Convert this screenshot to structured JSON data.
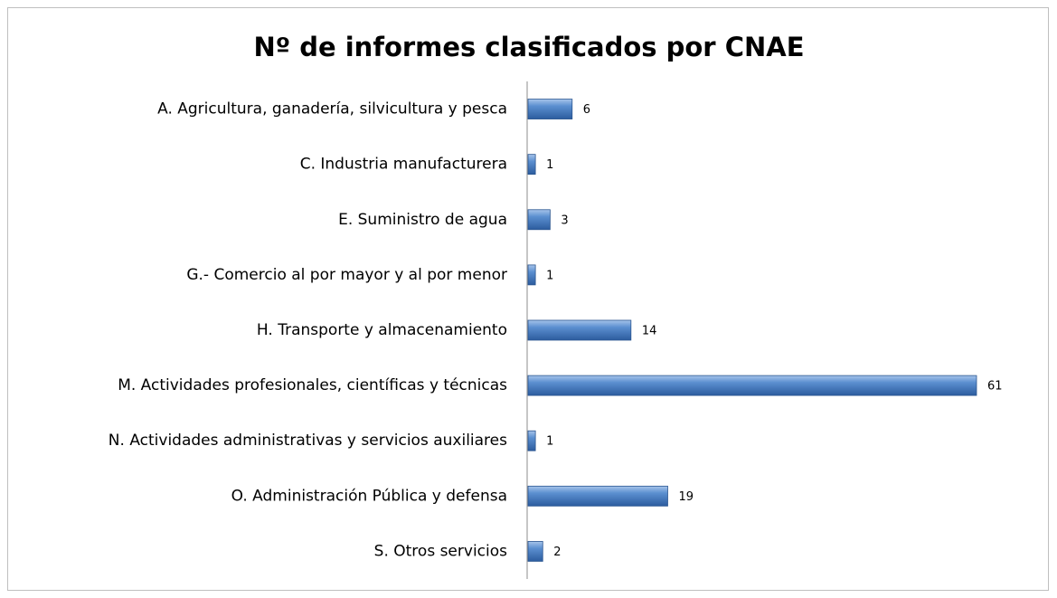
{
  "chart_data": {
    "type": "bar",
    "orientation": "horizontal",
    "title": "Nº de informes clasificados por CNAE",
    "categories": [
      "A. Agricultura, ganadería, silvicultura y pesca",
      "C. Industria manufacturera",
      "E. Suministro de agua",
      "G.- Comercio al por mayor y al por menor",
      "H. Transporte y almacenamiento",
      "M. Actividades profesionales, científicas y técnicas",
      "N. Actividades administrativas y servicios auxiliares",
      "O. Administración Pública y defensa",
      "S. Otros servicios"
    ],
    "values": [
      6,
      1,
      3,
      1,
      14,
      61,
      1,
      19,
      2
    ],
    "color": "#4f81bd"
  }
}
